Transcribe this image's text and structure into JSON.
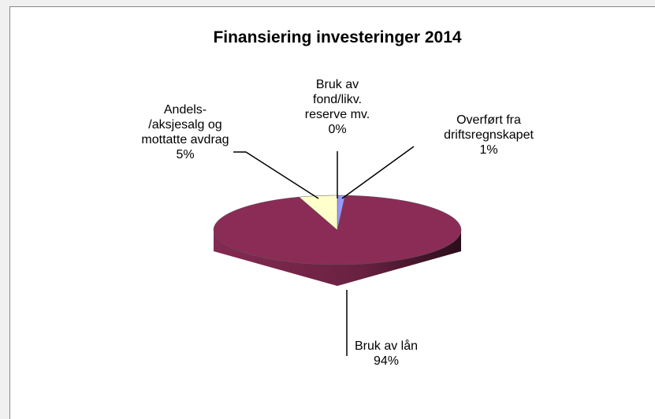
{
  "chart_data": {
    "type": "pie3d",
    "title": "Finansiering investeringer 2014",
    "categories": [
      "Overført fra\ndriftsregnskapet",
      "Bruk av lån",
      "Andels-\n/aksjesalg og\nmottatte avdrag",
      "Bruk av\nfond/likv.\nreserve mv."
    ],
    "values": [
      1,
      94,
      5,
      0
    ],
    "value_labels": [
      "1%",
      "94%",
      "5%",
      "0%"
    ],
    "colors": [
      "#9999ff",
      "#8b2c57",
      "#ffffcc",
      "#66cc99"
    ]
  }
}
